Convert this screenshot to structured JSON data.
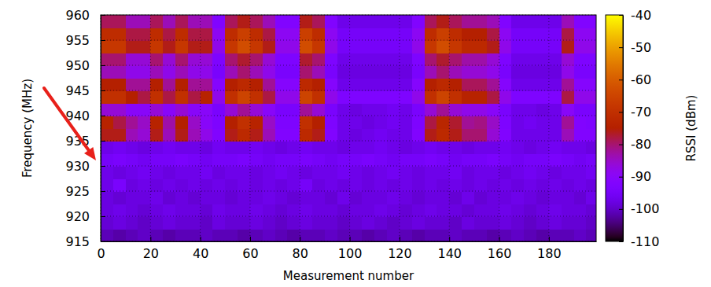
{
  "chart_data": {
    "type": "heatmap",
    "x_label": "Measurement number",
    "y_label": "Frequency (MHz)",
    "xlim": [
      0,
      199
    ],
    "ylim": [
      915,
      960
    ],
    "xticks": [
      0,
      20,
      40,
      60,
      80,
      100,
      120,
      140,
      160,
      180
    ],
    "yticks": [
      915,
      920,
      925,
      930,
      935,
      940,
      945,
      950,
      955,
      960
    ],
    "grid": true,
    "x_bins": [
      0,
      5,
      10,
      15,
      20,
      25,
      30,
      35,
      40,
      45,
      50,
      55,
      60,
      65,
      70,
      75,
      80,
      85,
      90,
      95,
      100,
      105,
      110,
      115,
      120,
      125,
      130,
      135,
      140,
      145,
      150,
      155,
      160,
      165,
      170,
      175,
      180,
      185,
      190,
      195,
      200
    ],
    "y_bins": [
      915,
      917.5,
      920,
      922.5,
      925,
      927.5,
      930,
      932.5,
      935,
      937.5,
      940,
      942.5,
      945,
      947.5,
      950,
      952.5,
      955,
      957.5,
      960
    ],
    "values": [
      [
        -101,
        -102,
        -101,
        -100,
        -101,
        -102,
        -101,
        -101,
        -100,
        -101,
        -101,
        -102,
        -101,
        -100,
        -101,
        -102,
        -101,
        -101,
        -100,
        -101,
        -101,
        -102,
        -101,
        -100,
        -101,
        -102,
        -101,
        -101,
        -100,
        -101,
        -101,
        -102,
        -101,
        -100,
        -101,
        -102,
        -101,
        -101,
        -100,
        -101
      ],
      [
        -99,
        -98,
        -99,
        -100,
        -99,
        -98,
        -99,
        -99,
        -100,
        -98,
        -99,
        -99,
        -98,
        -99,
        -100,
        -99,
        -98,
        -99,
        -99,
        -100,
        -99,
        -98,
        -99,
        -100,
        -99,
        -98,
        -99,
        -99,
        -100,
        -98,
        -99,
        -99,
        -98,
        -99,
        -100,
        -99,
        -98,
        -99,
        -99,
        -100
      ],
      [
        -98,
        -97,
        -98,
        -99,
        -98,
        -97,
        -98,
        -98,
        -99,
        -97,
        -98,
        -98,
        -97,
        -98,
        -99,
        -98,
        -97,
        -98,
        -98,
        -99,
        -98,
        -98,
        -97,
        -98,
        -99,
        -98,
        -97,
        -98,
        -98,
        -99,
        -98,
        -98,
        -97,
        -98,
        -99,
        -98,
        -97,
        -98,
        -98,
        -99
      ],
      [
        -98,
        -99,
        -98,
        -98,
        -97,
        -99,
        -98,
        -99,
        -98,
        -98,
        -99,
        -98,
        -98,
        -97,
        -98,
        -99,
        -98,
        -98,
        -99,
        -97,
        -99,
        -98,
        -98,
        -97,
        -98,
        -99,
        -98,
        -98,
        -99,
        -97,
        -99,
        -98,
        -98,
        -97,
        -98,
        -99,
        -98,
        -98,
        -99,
        -97
      ],
      [
        -97,
        -94,
        -98,
        -97,
        -98,
        -97,
        -98,
        -97,
        -98,
        -97,
        -98,
        -97,
        -98,
        -97,
        -98,
        -97,
        -95,
        -98,
        -97,
        -98,
        -97,
        -98,
        -97,
        -98,
        -97,
        -98,
        -97,
        -98,
        -97,
        -98,
        -97,
        -98,
        -97,
        -98,
        -97,
        -98,
        -97,
        -98,
        -97,
        -98
      ],
      [
        -97,
        -98,
        -97,
        -96,
        -97,
        -98,
        -97,
        -97,
        -96,
        -98,
        -97,
        -97,
        -98,
        -97,
        -96,
        -97,
        -98,
        -97,
        -97,
        -96,
        -97,
        -98,
        -97,
        -96,
        -97,
        -98,
        -97,
        -97,
        -96,
        -98,
        -97,
        -97,
        -98,
        -97,
        -96,
        -97,
        -98,
        -97,
        -97,
        -96
      ],
      [
        -95,
        -94,
        -95,
        -96,
        -95,
        -95,
        -94,
        -95,
        -96,
        -95,
        -95,
        -94,
        -95,
        -96,
        -95,
        -95,
        -94,
        -95,
        -96,
        -95,
        -95,
        -94,
        -95,
        -96,
        -95,
        -95,
        -94,
        -95,
        -96,
        -95,
        -95,
        -94,
        -95,
        -96,
        -95,
        -95,
        -94,
        -95,
        -96,
        -95
      ],
      [
        -97,
        -96,
        -97,
        -98,
        -97,
        -96,
        -97,
        -97,
        -98,
        -96,
        -97,
        -97,
        -96,
        -97,
        -98,
        -97,
        -96,
        -97,
        -97,
        -98,
        -97,
        -97,
        -96,
        -97,
        -98,
        -97,
        -96,
        -97,
        -97,
        -98,
        -97,
        -97,
        -96,
        -97,
        -98,
        -97,
        -96,
        -97,
        -97,
        -98
      ],
      [
        -76,
        -76,
        -84,
        -86,
        -76,
        -84,
        -76,
        -84,
        -88,
        -92,
        -76,
        -72,
        -76,
        -84,
        -92,
        -92,
        -72,
        -76,
        -92,
        -97,
        -98,
        -97,
        -96,
        -97,
        -97,
        -92,
        -76,
        -72,
        -76,
        -80,
        -80,
        -86,
        -92,
        -97,
        -97,
        -97,
        -97,
        -84,
        -92,
        -92
      ],
      [
        -74,
        -78,
        -82,
        -85,
        -74,
        -83,
        -75,
        -85,
        -90,
        -93,
        -75,
        -70,
        -74,
        -85,
        -93,
        -93,
        -70,
        -75,
        -93,
        -97,
        -97,
        -98,
        -97,
        -96,
        -97,
        -93,
        -78,
        -73,
        -77,
        -82,
        -81,
        -85,
        -93,
        -97,
        -96,
        -97,
        -97,
        -82,
        -92,
        -93
      ],
      [
        -86,
        -86,
        -90,
        -90,
        -86,
        -90,
        -86,
        -90,
        -90,
        -94,
        -86,
        -82,
        -86,
        -90,
        -94,
        -94,
        -82,
        -86,
        -94,
        -97,
        -98,
        -97,
        -97,
        -96,
        -97,
        -94,
        -86,
        -82,
        -86,
        -88,
        -88,
        -90,
        -94,
        -97,
        -97,
        -98,
        -97,
        -90,
        -94,
        -94
      ],
      [
        -70,
        -70,
        -75,
        -78,
        -70,
        -78,
        -70,
        -78,
        -74,
        -88,
        -70,
        -65,
        -70,
        -78,
        -88,
        -88,
        -65,
        -70,
        -88,
        -93,
        -93,
        -93,
        -93,
        -93,
        -93,
        -88,
        -70,
        -65,
        -70,
        -74,
        -74,
        -78,
        -88,
        -93,
        -93,
        -93,
        -93,
        -78,
        -88,
        -88
      ],
      [
        -75,
        -75,
        -82,
        -82,
        -75,
        -82,
        -75,
        -82,
        -82,
        -91,
        -75,
        -72,
        -75,
        -82,
        -91,
        -91,
        -72,
        -75,
        -91,
        -97,
        -97,
        -97,
        -97,
        -97,
        -97,
        -91,
        -75,
        -72,
        -75,
        -79,
        -79,
        -82,
        -91,
        -97,
        -97,
        -97,
        -97,
        -82,
        -91,
        -91
      ],
      [
        -84,
        -84,
        -88,
        -88,
        -84,
        -88,
        -84,
        -88,
        -88,
        -94,
        -84,
        -80,
        -84,
        -88,
        -94,
        -94,
        -80,
        -84,
        -94,
        -98,
        -98,
        -98,
        -98,
        -98,
        -98,
        -94,
        -84,
        -80,
        -84,
        -86,
        -86,
        -88,
        -94,
        -98,
        -98,
        -98,
        -98,
        -88,
        -94,
        -94
      ],
      [
        -80,
        -80,
        -86,
        -86,
        -80,
        -86,
        -80,
        -86,
        -86,
        -93,
        -80,
        -77,
        -80,
        -86,
        -93,
        -93,
        -77,
        -80,
        -93,
        -97,
        -97,
        -97,
        -97,
        -97,
        -97,
        -93,
        -80,
        -77,
        -80,
        -83,
        -83,
        -86,
        -93,
        -97,
        -97,
        -97,
        -97,
        -86,
        -93,
        -93
      ],
      [
        -68,
        -68,
        -76,
        -76,
        -68,
        -76,
        -68,
        -76,
        -76,
        -88,
        -68,
        -63,
        -68,
        -76,
        -88,
        -88,
        -63,
        -68,
        -88,
        -95,
        -95,
        -95,
        -95,
        -95,
        -95,
        -88,
        -68,
        -63,
        -68,
        -72,
        -72,
        -76,
        -88,
        -95,
        -95,
        -95,
        -95,
        -76,
        -88,
        -88
      ],
      [
        -71,
        -71,
        -78,
        -78,
        -71,
        -78,
        -71,
        -78,
        -78,
        -89,
        -71,
        -66,
        -71,
        -78,
        -89,
        -89,
        -66,
        -71,
        -89,
        -95,
        -95,
        -95,
        -95,
        -95,
        -95,
        -89,
        -71,
        -66,
        -71,
        -75,
        -75,
        -78,
        -89,
        -95,
        -95,
        -95,
        -95,
        -78,
        -89,
        -89
      ],
      [
        -79,
        -79,
        -84,
        -84,
        -79,
        -84,
        -79,
        -84,
        -84,
        -92,
        -79,
        -76,
        -79,
        -84,
        -92,
        -92,
        -76,
        -79,
        -92,
        -97,
        -97,
        -97,
        -97,
        -97,
        -97,
        -92,
        -79,
        -76,
        -79,
        -82,
        -82,
        -84,
        -92,
        -97,
        -97,
        -97,
        -97,
        -84,
        -92,
        -92
      ]
    ],
    "colorbar": {
      "label": "RSSI (dBm)",
      "range": [
        -110,
        -40
      ],
      "ticks": [
        -40,
        -50,
        -60,
        -70,
        -80,
        -90,
        -100,
        -110
      ]
    }
  }
}
